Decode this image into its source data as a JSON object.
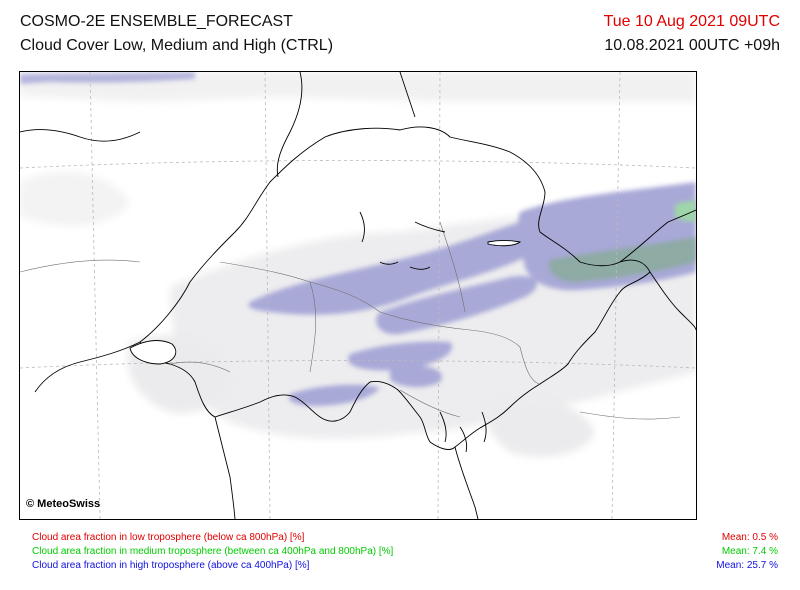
{
  "header": {
    "title": "COSMO-2E ENSEMBLE_FORECAST",
    "subtitle": "Cloud Cover Low, Medium and High (CTRL)",
    "valid_time": "Tue 10 Aug 2021 09UTC",
    "run_time": "10.08.2021 00UTC +09h"
  },
  "map": {
    "copyright": "© MeteoSwiss",
    "colors": {
      "high_cloud": "#a7a7d6",
      "medium_cloud": "#8fb0a4",
      "low_cloud": "#e8e8ea",
      "borders": "#000000",
      "grid": "#b9b9b9"
    }
  },
  "legend": [
    {
      "label": "Cloud area fraction in low troposphere (below ca 800hPa) [%]",
      "mean": "Mean:   0.5 %",
      "color": "#e00000"
    },
    {
      "label": "Cloud area fraction in medium troposphere (between ca 400hPa and 800hPa) [%]",
      "mean": "Mean:   7.4 %",
      "color": "#00cc00"
    },
    {
      "label": "Cloud area fraction in high troposphere (above ca 400hPa) [%]",
      "mean": "Mean:  25.7 %",
      "color": "#1010e0"
    }
  ]
}
